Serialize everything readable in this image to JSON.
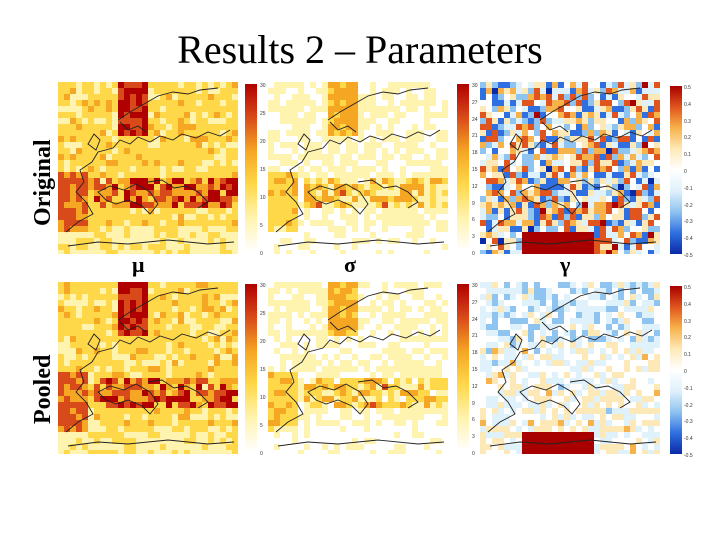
{
  "slide": {
    "title": "Results 2 – Parameters",
    "row_labels": [
      "Original",
      "Pooled"
    ],
    "param_labels": [
      "μ",
      "σ",
      "γ"
    ]
  },
  "colorbars": {
    "mu": {
      "ticks": [
        "30",
        "25",
        "20",
        "15",
        "10",
        "5",
        "0"
      ]
    },
    "sigma": {
      "ticks": [
        "30",
        "27",
        "24",
        "21",
        "18",
        "15",
        "12",
        "9",
        "6",
        "3",
        "0"
      ]
    },
    "gamma": {
      "ticks": [
        "0.5",
        "0.4",
        "0.3",
        "0.2",
        "0.1",
        "0",
        "-0.1",
        "-0.2",
        "-0.3",
        "-0.4",
        "-0.5"
      ]
    }
  },
  "colors": {
    "heat": [
      "#ffffff",
      "#fff3b0",
      "#ffd84a",
      "#f5a623",
      "#d94a1a",
      "#b00000"
    ],
    "diverging": [
      "#0a2aa8",
      "#2f6fe0",
      "#8fc3f0",
      "#dff1fb",
      "#ffffff",
      "#fde9b8",
      "#f7b24a",
      "#e0551d",
      "#a80000"
    ]
  }
}
